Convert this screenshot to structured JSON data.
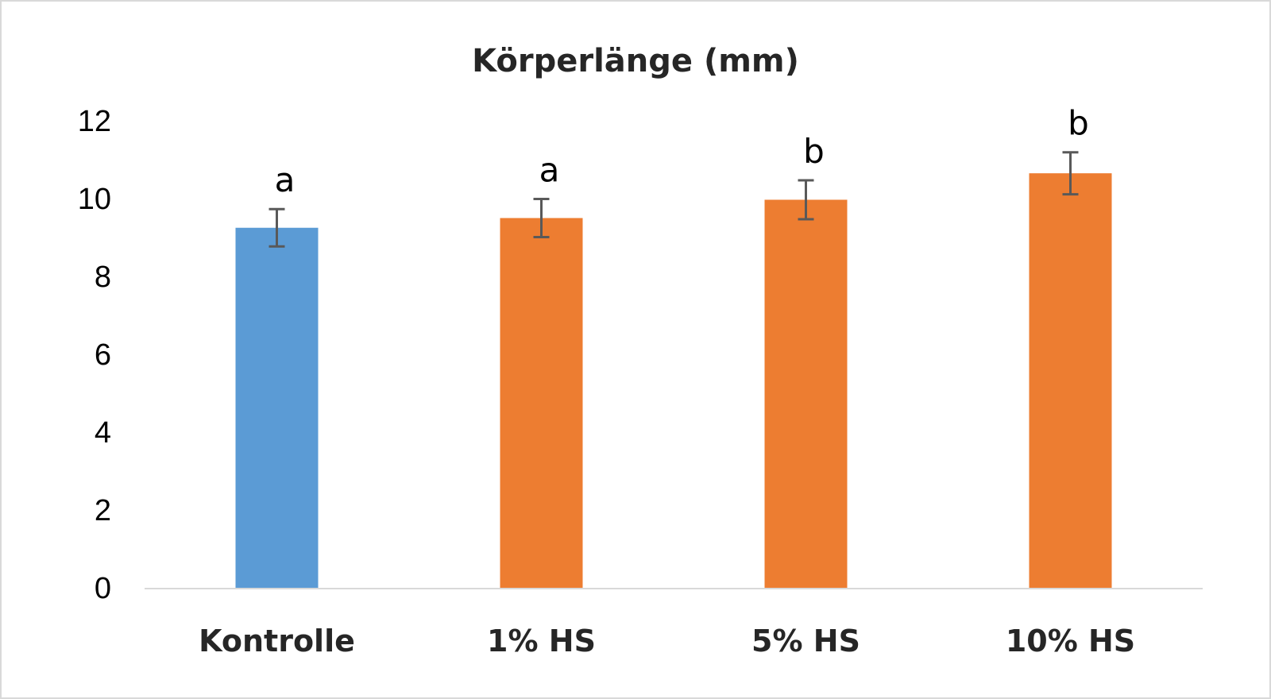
{
  "chart_data": {
    "type": "bar",
    "title": "Körperlänge (mm)",
    "xlabel": "",
    "ylabel": "",
    "ylim": [
      0,
      12
    ],
    "yticks": [
      0,
      2,
      4,
      6,
      8,
      10,
      12
    ],
    "grid": false,
    "legend": "none",
    "categories": [
      "Kontrolle",
      "1% HS",
      "5% HS",
      "10% HS"
    ],
    "values": [
      9.25,
      9.5,
      9.97,
      10.65
    ],
    "errors": [
      0.48,
      0.49,
      0.5,
      0.54
    ],
    "significance_letters": [
      "a",
      "a",
      "b",
      "b"
    ],
    "bar_colors": [
      "#5b9bd5",
      "#ed7d31",
      "#ed7d31",
      "#ed7d31"
    ],
    "error_bar_color": "#595959",
    "axis_color": "#d9d9d9"
  }
}
